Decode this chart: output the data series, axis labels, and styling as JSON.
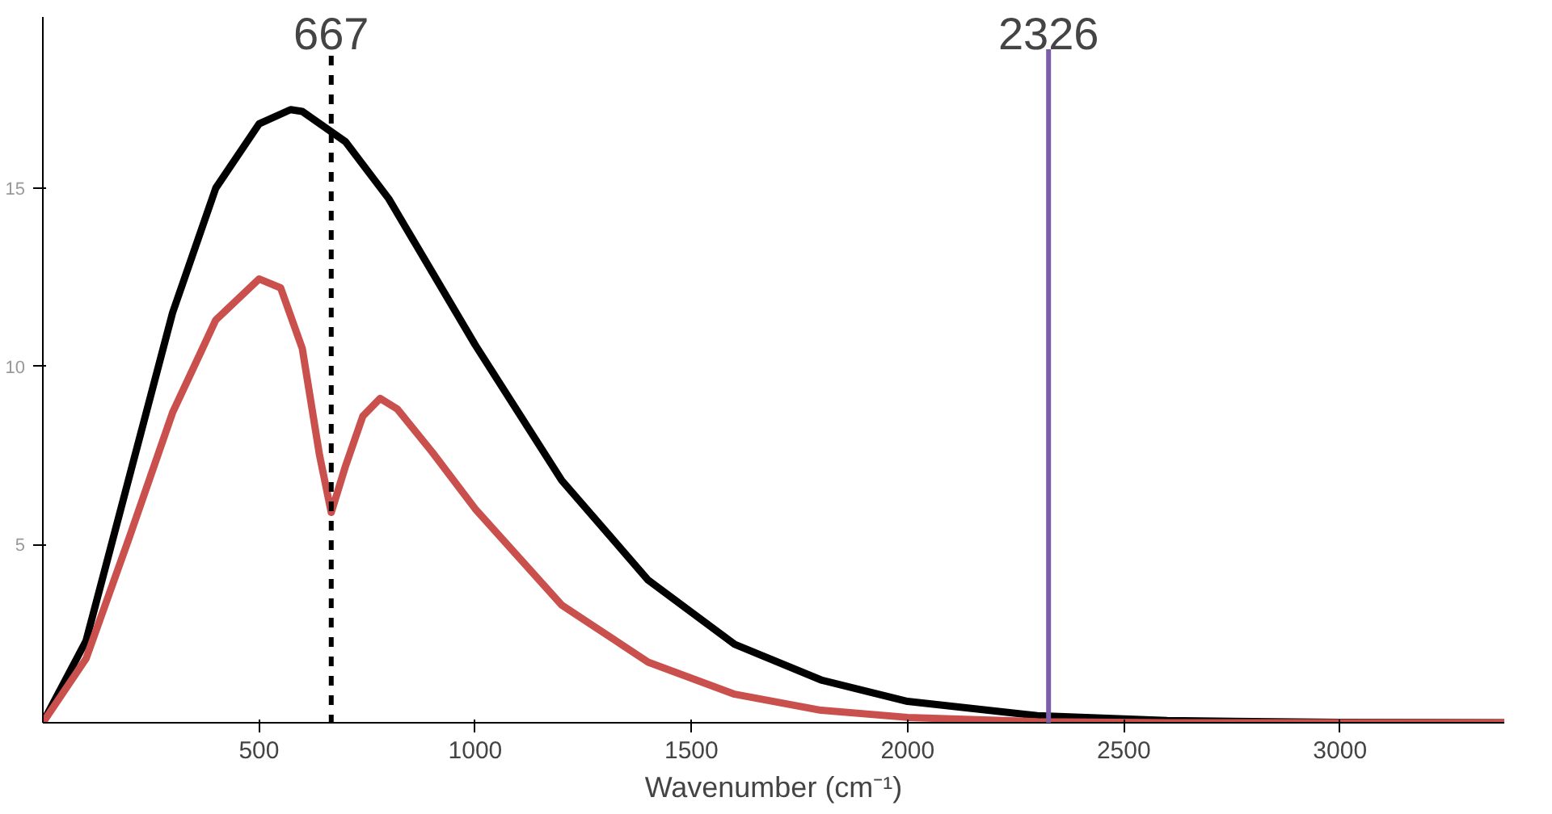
{
  "chart_data": {
    "type": "line",
    "xlabel": "Wavenumber (cm⁻¹)",
    "xlim": [
      0,
      3380
    ],
    "ylim": [
      0,
      19.8
    ],
    "xticks": [
      500,
      1000,
      1500,
      2000,
      2500,
      3000
    ],
    "yticks": [
      5,
      10,
      15
    ],
    "grid": false,
    "marker": "none",
    "line_style": "solid",
    "series": [
      {
        "color": "#000000",
        "x": [
          0,
          100,
          200,
          300,
          400,
          500,
          573,
          600,
          700,
          800,
          1000,
          1200,
          1400,
          1600,
          1800,
          2000,
          2300,
          2600,
          3000,
          3380
        ],
        "values": [
          0,
          2.3,
          6.9,
          11.5,
          15.0,
          16.8,
          17.2,
          17.15,
          16.3,
          14.7,
          10.6,
          6.8,
          4.0,
          2.2,
          1.2,
          0.6,
          0.2,
          0.06,
          0.01,
          0
        ]
      },
      {
        "color": "#c9504c",
        "x": [
          0,
          100,
          200,
          300,
          400,
          500,
          550,
          600,
          640,
          667,
          700,
          740,
          780,
          820,
          900,
          1000,
          1200,
          1400,
          1600,
          1800,
          2000,
          2300,
          2600,
          3380
        ],
        "values": [
          0,
          1.8,
          5.2,
          8.7,
          11.3,
          12.45,
          12.2,
          10.5,
          7.5,
          5.9,
          7.2,
          8.6,
          9.1,
          8.8,
          7.6,
          6.0,
          3.3,
          1.7,
          0.8,
          0.35,
          0.15,
          0.03,
          0,
          0
        ]
      }
    ],
    "ref_lines": [
      {
        "axis": "x",
        "value": 667,
        "label": "667",
        "color": "#000000",
        "line_style": "dashed"
      },
      {
        "axis": "x",
        "value": 2326,
        "label": "2326",
        "color": "#7b5ea7",
        "line_style": "solid"
      }
    ]
  }
}
